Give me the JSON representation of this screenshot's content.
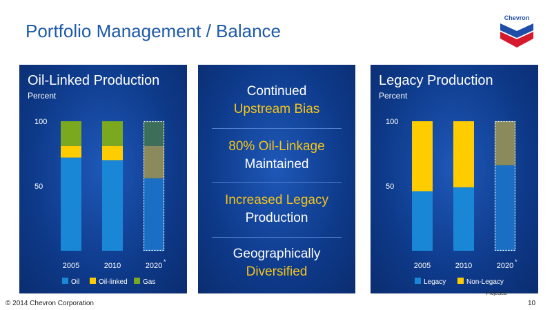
{
  "slide": {
    "title": "Portfolio Management / Balance",
    "logo_text": "Chevron",
    "footer": "© 2014 Chevron Corporation",
    "page_number": "10",
    "footnote": "* Projected"
  },
  "center": {
    "items": [
      {
        "line1": "Continued",
        "line1_color": "white",
        "line2": "Upstream Bias",
        "line2_color": "yellow"
      },
      {
        "line1": "80% Oil-Linkage",
        "line1_color": "yellow",
        "line2": "Maintained",
        "line2_color": "white"
      },
      {
        "line1": "Increased Legacy",
        "line1_color": "yellow",
        "line2": "Production",
        "line2_color": "white"
      },
      {
        "line1": "Geographically",
        "line1_color": "white",
        "line2": "Diversified",
        "line2_color": "yellow"
      }
    ]
  },
  "chart_data": [
    {
      "type": "bar",
      "stacked": true,
      "title": "Oil-Linked Production",
      "subtitle": "Percent",
      "categories": [
        "2005",
        "2010",
        "2020"
      ],
      "category_marks": [
        "",
        "",
        "*"
      ],
      "projected": [
        false,
        false,
        true
      ],
      "ylim": [
        0,
        100
      ],
      "yticks": [
        50,
        100
      ],
      "series": [
        {
          "name": "Oil",
          "values": [
            72,
            70,
            56
          ],
          "color": "#1a87d6",
          "projected_color": "#1a6fc4"
        },
        {
          "name": "Oil-linked",
          "values": [
            9,
            11,
            25
          ],
          "color": "#ffcc00",
          "projected_color": "#8a8a5c"
        },
        {
          "name": "Gas",
          "values": [
            19,
            19,
            19
          ],
          "color": "#7aa81e",
          "projected_color": "#3d6e5a"
        }
      ],
      "legend": "bottom"
    },
    {
      "type": "bar",
      "stacked": true,
      "title": "Legacy Production",
      "subtitle": "Percent",
      "categories": [
        "2005",
        "2010",
        "2020"
      ],
      "category_marks": [
        "",
        "",
        "*"
      ],
      "projected": [
        false,
        false,
        true
      ],
      "ylim": [
        0,
        100
      ],
      "yticks": [
        50,
        100
      ],
      "series": [
        {
          "name": "Legacy",
          "values": [
            46,
            49,
            66
          ],
          "color": "#1a87d6",
          "projected_color": "#1a6fc4"
        },
        {
          "name": "Non-Legacy",
          "values": [
            54,
            51,
            34
          ],
          "color": "#ffcc00",
          "projected_color": "#8a8a5c"
        }
      ],
      "legend": "bottom"
    }
  ]
}
